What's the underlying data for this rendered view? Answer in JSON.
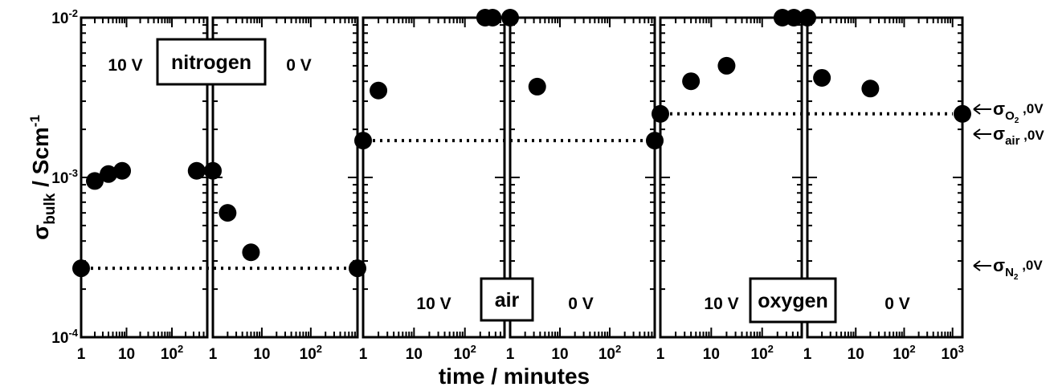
{
  "chart_data": {
    "type": "scatter",
    "scale": "log-log",
    "xlabel": "time / minutes",
    "ylabel": {
      "main": "σ",
      "sub": "bulk",
      "unit": " / Scm",
      "exp": "-1"
    },
    "ylim": [
      0.0001,
      0.01
    ],
    "y_ticks": [
      {
        "base": "10",
        "exp": "-2",
        "value": 0.01
      },
      {
        "base": "10",
        "exp": "-3",
        "value": 0.001
      },
      {
        "base": "10",
        "exp": "-4",
        "value": 0.0001
      }
    ],
    "panels": [
      {
        "gas": "nitrogen",
        "reference": {
          "value": 0.00027,
          "label": "σ",
          "sub": "N",
          "subsub": "2",
          "suffix": " ,0V"
        },
        "subpanels": [
          {
            "label": "10 V",
            "xlim": [
              1,
              600
            ],
            "x_ticks": [
              {
                "text": "1",
                "x": 1
              },
              {
                "text": "10",
                "x": 10
              },
              {
                "text": "10",
                "exp": "2",
                "x": 100
              }
            ],
            "points": [
              [
                1,
                0.00027
              ],
              [
                2,
                0.00095
              ],
              [
                4,
                0.00105
              ],
              [
                8,
                0.0011
              ],
              [
                350,
                0.0011
              ]
            ]
          },
          {
            "label": "0 V",
            "xlim": [
              1,
              900
            ],
            "x_ticks": [
              {
                "text": "1",
                "x": 1
              },
              {
                "text": "10",
                "x": 10
              },
              {
                "text": "10",
                "exp": "2",
                "x": 100
              }
            ],
            "points": [
              [
                1,
                0.0011
              ],
              [
                2,
                0.0006
              ],
              [
                6,
                0.00034
              ],
              [
                900,
                0.00027
              ]
            ]
          }
        ]
      },
      {
        "gas": "air",
        "reference": {
          "value": 0.0017,
          "label": "σ",
          "sub": "air",
          "suffix": " ,0V"
        },
        "subpanels": [
          {
            "label": "10 V",
            "xlim": [
              1,
              600
            ],
            "x_ticks": [
              {
                "text": "1",
                "x": 1
              },
              {
                "text": "10",
                "x": 10
              },
              {
                "text": "10",
                "exp": "2",
                "x": 100
              }
            ],
            "points": [
              [
                1,
                0.0017
              ],
              [
                2,
                0.0035
              ],
              [
                250,
                0.01
              ],
              [
                350,
                0.01
              ]
            ]
          },
          {
            "label": "0 V",
            "xlim": [
              1,
              800
            ],
            "x_ticks": [
              {
                "text": "1",
                "x": 1
              },
              {
                "text": "10",
                "x": 10
              },
              {
                "text": "10",
                "exp": "2",
                "x": 100
              }
            ],
            "points": [
              [
                1,
                0.01
              ],
              [
                3.5,
                0.0037
              ],
              [
                800,
                0.0017
              ]
            ]
          }
        ]
      },
      {
        "gas": "oxygen",
        "reference": {
          "value": 0.0025,
          "label": "σ",
          "sub": "O",
          "subsub": "2",
          "suffix": " ,0V"
        },
        "subpanels": [
          {
            "label": "10 V",
            "xlim": [
              1,
              600
            ],
            "x_ticks": [
              {
                "text": "1",
                "x": 1
              },
              {
                "text": "10",
                "x": 10
              },
              {
                "text": "10",
                "exp": "2",
                "x": 100
              }
            ],
            "points": [
              [
                1,
                0.0025
              ],
              [
                4,
                0.004
              ],
              [
                20,
                0.005
              ],
              [
                250,
                0.01
              ],
              [
                420,
                0.01
              ]
            ]
          },
          {
            "label": "0 V",
            "xlim": [
              1,
              1600
            ],
            "x_ticks": [
              {
                "text": "1",
                "x": 1
              },
              {
                "text": "10",
                "x": 10
              },
              {
                "text": "10",
                "exp": "2",
                "x": 100
              },
              {
                "text": "10",
                "exp": "3",
                "x": 1000
              }
            ],
            "points": [
              [
                1,
                0.01
              ],
              [
                2,
                0.0042
              ],
              [
                20,
                0.0036
              ],
              [
                1600,
                0.0025
              ]
            ]
          }
        ]
      }
    ]
  }
}
